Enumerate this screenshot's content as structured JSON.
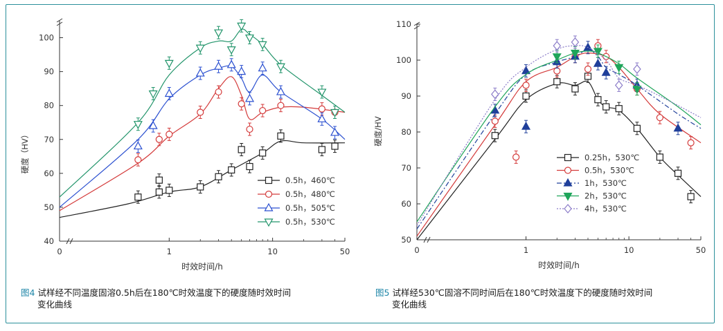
{
  "chart_data": [
    {
      "type": "scatter",
      "title": "",
      "xlabel": "时效时间/h",
      "ylabel": "硬度（HV）",
      "x_scale": "log-with-zero",
      "ylim": [
        40,
        105
      ],
      "y_ticks": [
        40,
        50,
        60,
        70,
        80,
        90,
        100
      ],
      "x_ticks": [
        {
          "value": 0,
          "label": "0"
        },
        {
          "value": 1,
          "label": "1"
        },
        {
          "value": 10,
          "label": "10"
        },
        {
          "value": 50,
          "label": "50"
        }
      ],
      "legend_position": "bottom-right",
      "series": [
        {
          "name": "0.5h，460℃",
          "marker": "square",
          "color": "#222222",
          "points": [
            [
              0.5,
              53
            ],
            [
              0.8,
              54.5
            ],
            [
              1,
              55
            ],
            [
              2,
              56
            ],
            [
              3,
              59
            ],
            [
              4,
              61
            ],
            [
              5,
              67
            ],
            [
              6,
              62
            ],
            [
              8,
              66
            ],
            [
              12,
              71
            ],
            [
              30,
              67
            ],
            [
              40,
              68
            ]
          ],
          "extra_points": [
            [
              0.8,
              58
            ]
          ],
          "curve": [
            [
              0,
              47
            ],
            [
              0.4,
              51
            ],
            [
              1,
              54.5
            ],
            [
              2,
              56
            ],
            [
              4,
              61
            ],
            [
              8,
              66
            ],
            [
              12,
              69.5
            ],
            [
              20,
              69
            ],
            [
              50,
              69
            ]
          ]
        },
        {
          "name": "0.5h，480℃",
          "marker": "circle",
          "color": "#d43a3a",
          "points": [
            [
              0.5,
              64
            ],
            [
              0.8,
              70
            ],
            [
              1,
              71.5
            ],
            [
              2,
              78
            ],
            [
              3,
              84
            ],
            [
              5,
              80.5
            ],
            [
              6,
              73
            ],
            [
              8,
              78.5
            ],
            [
              12,
              80
            ],
            [
              30,
              79
            ],
            [
              40,
              78
            ]
          ],
          "curve": [
            [
              0,
              49
            ],
            [
              0.5,
              63
            ],
            [
              1,
              71
            ],
            [
              2,
              77.5
            ],
            [
              3,
              85
            ],
            [
              4,
              88.5
            ],
            [
              5,
              83
            ],
            [
              6,
              76
            ],
            [
              8,
              78
            ],
            [
              12,
              79.5
            ],
            [
              20,
              79.5
            ],
            [
              50,
              78
            ]
          ]
        },
        {
          "name": "0.5h，505℃",
          "marker": "triangle-up",
          "color": "#2a4fd0",
          "points": [
            [
              0.5,
              68
            ],
            [
              0.7,
              74
            ],
            [
              1,
              83.5
            ],
            [
              2,
              89.5
            ],
            [
              3,
              91.5
            ],
            [
              4,
              92
            ],
            [
              5,
              90
            ],
            [
              6,
              82
            ],
            [
              8,
              91
            ],
            [
              12,
              84
            ],
            [
              30,
              76
            ],
            [
              40,
              72
            ]
          ],
          "curve": [
            [
              0,
              50
            ],
            [
              0.5,
              70
            ],
            [
              1,
              82
            ],
            [
              2,
              89
            ],
            [
              3,
              91
            ],
            [
              4,
              91.5
            ],
            [
              5,
              88
            ],
            [
              6,
              84
            ],
            [
              8,
              89
            ],
            [
              12,
              84
            ],
            [
              30,
              76
            ],
            [
              50,
              70
            ]
          ]
        },
        {
          "name": "0.5h，530℃",
          "marker": "triangle-down",
          "color": "#21946a",
          "points": [
            [
              0.5,
              74.5
            ],
            [
              0.7,
              83.5
            ],
            [
              1,
              92.5
            ],
            [
              2,
              97
            ],
            [
              3,
              101.5
            ],
            [
              4,
              96.5
            ],
            [
              5,
              103.5
            ],
            [
              6,
              100
            ],
            [
              8,
              98
            ],
            [
              12,
              91.5
            ],
            [
              30,
              84
            ],
            [
              40,
              78
            ]
          ],
          "curve": [
            [
              0,
              53
            ],
            [
              0.5,
              75
            ],
            [
              1,
              89
            ],
            [
              2,
              97
            ],
            [
              3,
              99
            ],
            [
              4,
              99
            ],
            [
              5,
              102.5
            ],
            [
              6,
              101
            ],
            [
              8,
              98
            ],
            [
              12,
              92
            ],
            [
              30,
              83
            ],
            [
              50,
              78
            ]
          ]
        }
      ]
    },
    {
      "type": "scatter",
      "title": "",
      "xlabel": "时效时间/h",
      "ylabel": "硬度/HV",
      "x_scale": "log-with-zero",
      "ylim": [
        50,
        110
      ],
      "y_ticks": [
        50,
        60,
        70,
        80,
        90,
        100,
        110
      ],
      "x_ticks": [
        {
          "value": 0,
          "label": "0"
        },
        {
          "value": 1,
          "label": "1"
        },
        {
          "value": 10,
          "label": "10"
        },
        {
          "value": 50,
          "label": "50"
        }
      ],
      "legend_position": "bottom-right",
      "series": [
        {
          "name": "0.25h，530℃",
          "marker": "square",
          "color": "#222222",
          "line": "solid",
          "points": [
            [
              0.5,
              79
            ],
            [
              1,
              90
            ],
            [
              2,
              94
            ],
            [
              3,
              92
            ],
            [
              4,
              95.5
            ],
            [
              5,
              89
            ],
            [
              6,
              87
            ],
            [
              8,
              86.5
            ],
            [
              12,
              81
            ],
            [
              20,
              73
            ],
            [
              30,
              68.5
            ],
            [
              40,
              62
            ]
          ],
          "curve": [
            [
              0,
              50
            ],
            [
              0.5,
              78
            ],
            [
              1,
              89
            ],
            [
              2,
              93.5
            ],
            [
              3,
              93
            ],
            [
              4,
              94
            ],
            [
              5,
              89
            ],
            [
              6,
              87
            ],
            [
              8,
              86
            ],
            [
              12,
              81
            ],
            [
              20,
              73
            ],
            [
              30,
              68
            ],
            [
              50,
              62
            ]
          ]
        },
        {
          "name": "0.5h，530℃",
          "marker": "circle",
          "color": "#d43a3a",
          "line": "solid",
          "points": [
            [
              0.5,
              83
            ],
            [
              0.8,
              73
            ],
            [
              1,
              93
            ],
            [
              2,
              97
            ],
            [
              3,
              101
            ],
            [
              4,
              97.5
            ],
            [
              5,
              104
            ],
            [
              6,
              101
            ],
            [
              12,
              92
            ],
            [
              20,
              84
            ],
            [
              40,
              77
            ]
          ],
          "curve": [
            [
              0,
              51
            ],
            [
              0.5,
              82
            ],
            [
              1,
              94
            ],
            [
              2,
              98
            ],
            [
              3,
              101
            ],
            [
              4,
              102
            ],
            [
              6,
              101
            ],
            [
              8,
              98
            ],
            [
              12,
              92
            ],
            [
              20,
              85
            ],
            [
              50,
              77
            ]
          ]
        },
        {
          "name": "1h，530℃",
          "marker": "triangle-up-filled",
          "color": "#1f3f9a",
          "line": "dashdot",
          "points": [
            [
              0.5,
              86
            ],
            [
              1,
              97
            ],
            [
              1,
              81.5
            ],
            [
              2,
              99.5
            ],
            [
              3,
              101
            ],
            [
              4,
              103.5
            ],
            [
              5,
              99
            ],
            [
              6,
              96.5
            ],
            [
              12,
              93
            ],
            [
              30,
              81
            ]
          ],
          "curve": [
            [
              0,
              53
            ],
            [
              0.5,
              85
            ],
            [
              1,
              96
            ],
            [
              2,
              99.5
            ],
            [
              3,
              101
            ],
            [
              4,
              103
            ],
            [
              5,
              101
            ],
            [
              6,
              98
            ],
            [
              8,
              96
            ],
            [
              12,
              93
            ],
            [
              30,
              85
            ],
            [
              50,
              81
            ]
          ]
        },
        {
          "name": "2h，530℃",
          "marker": "triangle-down-filled",
          "color": "#1fa55a",
          "line": "solid",
          "points": [
            [
              2,
              101
            ],
            [
              3,
              102
            ],
            [
              5,
              102.5
            ],
            [
              8,
              98
            ],
            [
              12,
              92
            ]
          ],
          "curve": [
            [
              0,
              55
            ],
            [
              0.5,
              87
            ],
            [
              1,
              96
            ],
            [
              2,
              100
            ],
            [
              3,
              102
            ],
            [
              4,
              102.5
            ],
            [
              5,
              102
            ],
            [
              8,
              99
            ],
            [
              12,
              95
            ],
            [
              30,
              87
            ],
            [
              50,
              82
            ]
          ]
        },
        {
          "name": "4h，530℃",
          "marker": "diamond",
          "color": "#8a7bc8",
          "line": "dotted",
          "points": [
            [
              0.5,
              90.5
            ],
            [
              2,
              104
            ],
            [
              3,
              105
            ],
            [
              8,
              93
            ],
            [
              12,
              97.5
            ]
          ],
          "curve": [
            [
              0,
              54
            ],
            [
              0.5,
              89
            ],
            [
              1,
              98
            ],
            [
              2,
              103
            ],
            [
              3,
              104
            ],
            [
              4,
              103.5
            ],
            [
              6,
              100
            ],
            [
              8,
              95
            ],
            [
              12,
              93
            ],
            [
              20,
              90
            ],
            [
              50,
              84
            ]
          ]
        }
      ]
    }
  ],
  "captions": {
    "fig4_label": "图4",
    "fig4_line1": "试样经不同温度固溶0.5h后在180℃时效温度下的硬度随时效时间",
    "fig4_line2": "变化曲线",
    "fig5_label": "图5",
    "fig5_line1": "试样经530℃固溶不同时间后在180℃时效温度下的硬度随时效时间",
    "fig5_line2": "变化曲线"
  },
  "colors": {
    "frame": "#2a8f9a",
    "caption_label": "#1e86a8"
  }
}
